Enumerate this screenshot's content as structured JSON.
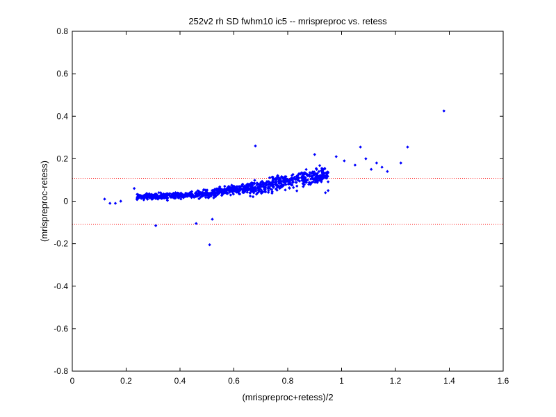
{
  "chart_data": {
    "type": "scatter",
    "title": "252v2 rh SD fwhm10 ic5 -- mrispreproc vs. retess",
    "xlabel": "(mrispreproc+retess)/2",
    "ylabel": "(mrispreproc-retess)",
    "xlim": [
      0,
      1.6
    ],
    "ylim": [
      -0.8,
      0.8
    ],
    "xticks": [
      "0",
      "0.2",
      "0.4",
      "0.6",
      "0.8",
      "1",
      "1.2",
      "1.4",
      "1.6"
    ],
    "yticks": [
      "0.8",
      "0.6",
      "0.4",
      "0.2",
      "0",
      "-0.2",
      "-0.4",
      "-0.6",
      "-0.8"
    ],
    "reference_lines": [
      0.108,
      -0.108
    ],
    "marker_color": "#0000ff",
    "reference_line_color": "#ff0000",
    "outliers": [
      {
        "x": 0.12,
        "y": 0.01
      },
      {
        "x": 0.14,
        "y": -0.01
      },
      {
        "x": 0.16,
        "y": -0.01
      },
      {
        "x": 0.18,
        "y": 0.0
      },
      {
        "x": 0.23,
        "y": 0.06
      },
      {
        "x": 0.31,
        "y": -0.115
      },
      {
        "x": 0.46,
        "y": -0.105
      },
      {
        "x": 0.51,
        "y": -0.205
      },
      {
        "x": 0.52,
        "y": -0.085
      },
      {
        "x": 0.68,
        "y": 0.26
      },
      {
        "x": 0.9,
        "y": 0.22
      },
      {
        "x": 0.98,
        "y": 0.21
      },
      {
        "x": 1.01,
        "y": 0.19
      },
      {
        "x": 1.05,
        "y": 0.17
      },
      {
        "x": 1.07,
        "y": 0.255
      },
      {
        "x": 1.09,
        "y": 0.2
      },
      {
        "x": 1.11,
        "y": 0.15
      },
      {
        "x": 1.13,
        "y": 0.18
      },
      {
        "x": 1.15,
        "y": 0.16
      },
      {
        "x": 1.17,
        "y": 0.14
      },
      {
        "x": 1.22,
        "y": 0.18
      },
      {
        "x": 1.245,
        "y": 0.255
      },
      {
        "x": 1.38,
        "y": 0.425
      },
      {
        "x": 0.94,
        "y": 0.04
      },
      {
        "x": 0.95,
        "y": 0.05
      }
    ],
    "trend": {
      "description": "dense cloud of ~1000 points",
      "segments": [
        {
          "x_start": 0.24,
          "x_end": 0.45,
          "y_start": 0.02,
          "y_end": 0.03,
          "spread": 0.025
        },
        {
          "x_start": 0.45,
          "x_end": 0.65,
          "y_start": 0.03,
          "y_end": 0.06,
          "spread": 0.035
        },
        {
          "x_start": 0.65,
          "x_end": 0.95,
          "y_start": 0.06,
          "y_end": 0.13,
          "spread": 0.06
        }
      ],
      "n_points": 1000
    }
  }
}
